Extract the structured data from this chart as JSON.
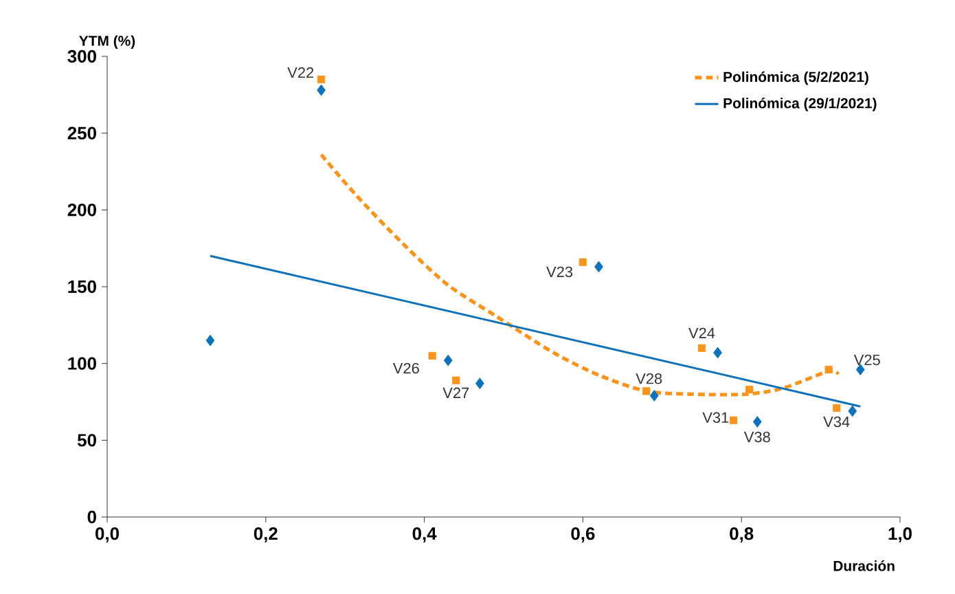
{
  "chart_data": {
    "type": "scatter",
    "xlabel": "Duración",
    "ylabel": "YTM (%)",
    "xlim": [
      0,
      1
    ],
    "ylim": [
      0,
      300
    ],
    "xticks": [
      {
        "value": 0,
        "label": "0,0"
      },
      {
        "value": 0.2,
        "label": "0,2"
      },
      {
        "value": 0.4,
        "label": "0,4"
      },
      {
        "value": 0.6,
        "label": "0,6"
      },
      {
        "value": 0.8,
        "label": "0,8"
      },
      {
        "value": 1,
        "label": "1,0"
      }
    ],
    "yticks": [
      0,
      50,
      100,
      150,
      200,
      250,
      300
    ],
    "grid": false,
    "legend": "top right",
    "series": [
      {
        "marker": "square",
        "color": "#f7941d",
        "x": [
          0.27,
          0.41,
          0.44,
          0.6,
          0.68,
          0.75,
          0.79,
          0.81,
          0.91,
          0.92
        ],
        "values": [
          285,
          105,
          89,
          166,
          82,
          110,
          63,
          83,
          96,
          71
        ]
      },
      {
        "marker": "diamond",
        "color": "#0f71b8",
        "x": [
          0.13,
          0.27,
          0.43,
          0.47,
          0.62,
          0.69,
          0.77,
          0.82,
          0.95,
          0.94
        ],
        "values": [
          115,
          278,
          102,
          87,
          163,
          79,
          107,
          62,
          96,
          69
        ]
      },
      {
        "type": "line",
        "name": "Polinómica (5/2/2021)",
        "line_style": "dashed",
        "marker": "none",
        "color": "#f7941d",
        "x": [
          0.27,
          0.315,
          0.373,
          0.43,
          0.49,
          0.563,
          0.622,
          0.68,
          0.737,
          0.806,
          0.853,
          0.91,
          0.922
        ],
        "values": [
          236,
          209,
          178,
          151,
          131,
          107,
          92,
          82,
          80,
          80,
          84,
          95,
          93
        ]
      },
      {
        "type": "line",
        "name": "Polinómica (29/1/2021)",
        "line_style": "solid",
        "marker": "none",
        "color": "#0f71b8",
        "x": [
          0.13,
          0.95
        ],
        "values": [
          170,
          72
        ]
      }
    ],
    "annotations": [
      {
        "text": "V22",
        "x": 0.27,
        "y": 285
      },
      {
        "text": "V23",
        "x": 0.6,
        "y": 166
      },
      {
        "text": "V24",
        "x": 0.75,
        "y": 110
      },
      {
        "text": "V25",
        "x": 0.95,
        "y": 96
      },
      {
        "text": "V26",
        "x": 0.41,
        "y": 105
      },
      {
        "text": "V27",
        "x": 0.44,
        "y": 89
      },
      {
        "text": "V28",
        "x": 0.68,
        "y": 82
      },
      {
        "text": "V31",
        "x": 0.79,
        "y": 63
      },
      {
        "text": "V38",
        "x": 0.82,
        "y": 62
      },
      {
        "text": "V34",
        "x": 0.92,
        "y": 71
      }
    ]
  }
}
